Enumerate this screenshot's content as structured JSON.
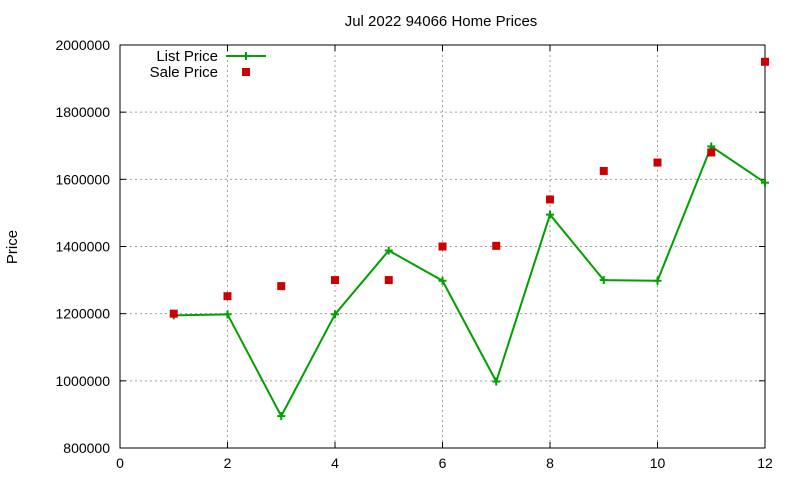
{
  "chart_data": {
    "type": "line",
    "title": "Jul 2022 94066 Home Prices",
    "xlabel": "",
    "ylabel": "Price",
    "xlim": [
      0,
      12
    ],
    "ylim": [
      800000,
      2000000
    ],
    "x_ticks": [
      "0",
      "2",
      "4",
      "6",
      "8",
      "10",
      "12"
    ],
    "x_tick_values": [
      0,
      2,
      4,
      6,
      8,
      10,
      12
    ],
    "y_ticks": [
      "800000",
      "1000000",
      "1200000",
      "1400000",
      "1600000",
      "1800000",
      "2000000"
    ],
    "y_tick_values": [
      800000,
      1000000,
      1200000,
      1400000,
      1600000,
      1800000,
      2000000
    ],
    "grid": true,
    "legend_position": "top-left",
    "series": [
      {
        "name": "List Price",
        "style": "line-plus",
        "color": "#00a000",
        "x": [
          1,
          2,
          3,
          4,
          5,
          6,
          7,
          8,
          9,
          10,
          11,
          12
        ],
        "values": [
          1195000,
          1198000,
          895000,
          1198000,
          1388000,
          1298000,
          998000,
          1495000,
          1300000,
          1298000,
          1698000,
          1590000
        ]
      },
      {
        "name": "Sale Price",
        "style": "square-points",
        "color": "#cc0000",
        "x": [
          1,
          2,
          3,
          4,
          5,
          6,
          7,
          8,
          9,
          10,
          11,
          12
        ],
        "values": [
          1200000,
          1252000,
          1282000,
          1300000,
          1300000,
          1400000,
          1402000,
          1540000,
          1625000,
          1650000,
          1680000,
          1950000
        ]
      }
    ]
  }
}
